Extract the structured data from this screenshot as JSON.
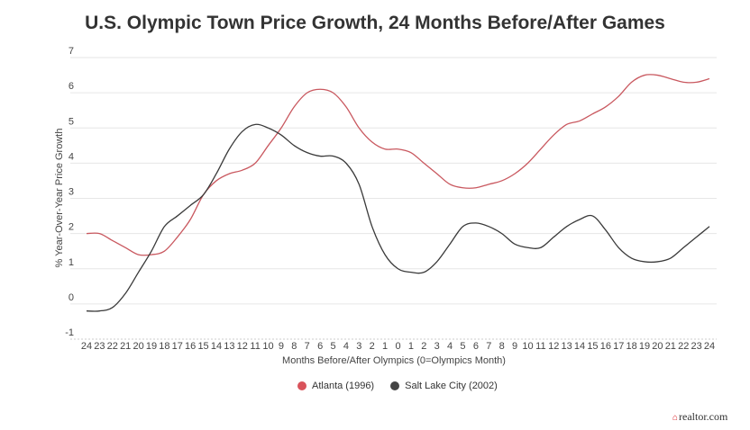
{
  "chart_data": {
    "type": "line",
    "title": "U.S. Olympic Town Price Growth, 24 Months Before/After Games",
    "xlabel": "Months Before/After Olympics (0=Olympics Month)",
    "ylabel": "% Year-Over-Year Price Growth",
    "x": [
      -24,
      -23,
      -22,
      -21,
      -20,
      -19,
      -18,
      -17,
      -16,
      -15,
      -14,
      -13,
      -12,
      -11,
      -10,
      -9,
      -8,
      -7,
      -6,
      -5,
      -4,
      -3,
      -2,
      -1,
      0,
      1,
      2,
      3,
      4,
      5,
      6,
      7,
      8,
      9,
      10,
      11,
      12,
      13,
      14,
      15,
      16,
      17,
      18,
      19,
      20,
      21,
      22,
      23,
      24
    ],
    "x_tick_labels": [
      "24",
      "23",
      "22",
      "21",
      "20",
      "19",
      "18",
      "17",
      "16",
      "15",
      "14",
      "13",
      "12",
      "11",
      "10",
      "9",
      "8",
      "7",
      "6",
      "5",
      "4",
      "3",
      "2",
      "1",
      "0",
      "1",
      "2",
      "3",
      "4",
      "5",
      "6",
      "7",
      "8",
      "9",
      "10",
      "11",
      "12",
      "13",
      "14",
      "15",
      "16",
      "17",
      "18",
      "19",
      "20",
      "21",
      "22",
      "23",
      "24"
    ],
    "y_ticks": [
      -1,
      0,
      1,
      2,
      3,
      4,
      5,
      6,
      7
    ],
    "ylim": [
      -1,
      7
    ],
    "grid": "horizontal",
    "legend_position": "bottom",
    "series": [
      {
        "name": "Atlanta (1996)",
        "color": "#c9585f",
        "values": [
          2.0,
          2.0,
          1.8,
          1.6,
          1.4,
          1.4,
          1.5,
          1.9,
          2.4,
          3.1,
          3.5,
          3.7,
          3.8,
          4.0,
          4.5,
          5.0,
          5.6,
          6.0,
          6.1,
          6.0,
          5.6,
          5.0,
          4.6,
          4.4,
          4.4,
          4.3,
          4.0,
          3.7,
          3.4,
          3.3,
          3.3,
          3.4,
          3.5,
          3.7,
          4.0,
          4.4,
          4.8,
          5.1,
          5.2,
          5.4,
          5.6,
          5.9,
          6.3,
          6.5,
          6.5,
          6.4,
          6.3,
          6.3,
          6.4
        ]
      },
      {
        "name": "Salt Lake City (2002)",
        "color": "#3a3a3a",
        "values": [
          -0.2,
          -0.2,
          -0.1,
          0.3,
          0.9,
          1.5,
          2.2,
          2.5,
          2.8,
          3.1,
          3.7,
          4.4,
          4.9,
          5.1,
          5.0,
          4.8,
          4.5,
          4.3,
          4.2,
          4.2,
          4.0,
          3.4,
          2.2,
          1.4,
          1.0,
          0.9,
          0.9,
          1.2,
          1.7,
          2.2,
          2.3,
          2.2,
          2.0,
          1.7,
          1.6,
          1.6,
          1.9,
          2.2,
          2.4,
          2.5,
          2.1,
          1.6,
          1.3,
          1.2,
          1.2,
          1.3,
          1.6,
          1.9,
          2.2
        ]
      }
    ]
  },
  "logo": {
    "text": "realtor.com",
    "accent": "#d92228"
  }
}
